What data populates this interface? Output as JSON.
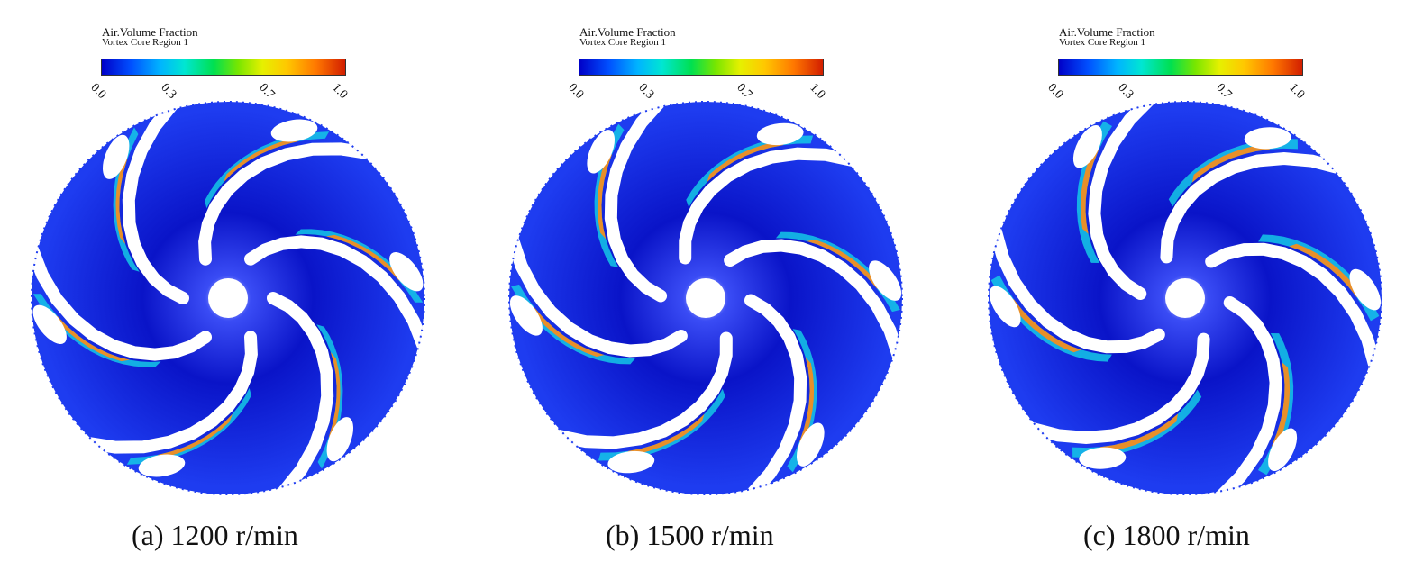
{
  "panels": [
    {
      "legend": {
        "title": "Air.Volume Fraction",
        "subtitle": "Vortex Core Region 1",
        "ticks": [
          "0.0",
          "0.3",
          "0.7",
          "1.0"
        ]
      },
      "caption": "(a) 1200 r/min",
      "hot_level": 0.55
    },
    {
      "legend": {
        "title": "Air.Volume Fraction",
        "subtitle": "Vortex Core Region 1",
        "ticks": [
          "0.0",
          "0.3",
          "0.7",
          "1.0"
        ]
      },
      "caption": "(b) 1500 r/min",
      "hot_level": 0.65
    },
    {
      "legend": {
        "title": "Air.Volume Fraction",
        "subtitle": "Vortex Core Region 1",
        "ticks": [
          "0.0",
          "0.3",
          "0.7",
          "1.0"
        ]
      },
      "caption": "(c) 1800 r/min",
      "hot_level": 0.8
    }
  ],
  "colors": {
    "deep_blue": "#0a14c8",
    "blue": "#1e3cf0",
    "cyan": "#14c8e6",
    "green": "#3cdc3c",
    "yellow": "#f0e614",
    "orange": "#ff8c14",
    "red": "#dc2d14",
    "blade": "#ffffff"
  }
}
